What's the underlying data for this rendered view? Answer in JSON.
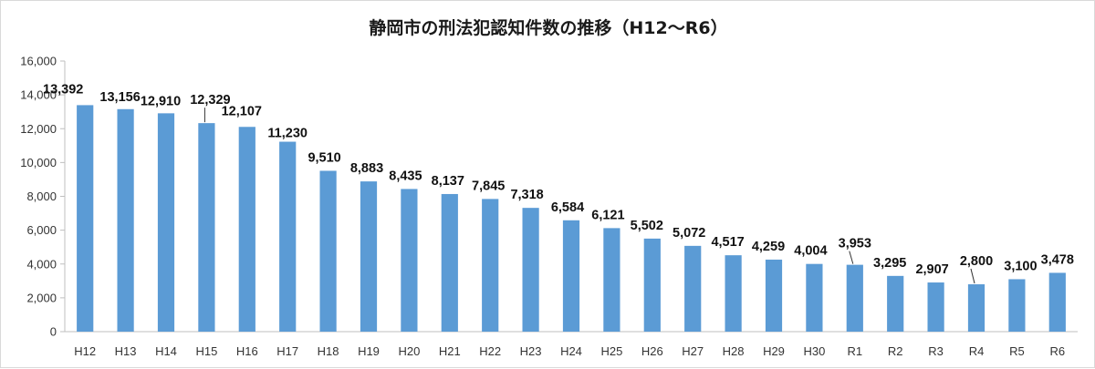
{
  "chart_data": {
    "type": "bar",
    "title": "静岡市の刑法犯認知件数の推移（H12～R6）",
    "xlabel": "",
    "ylabel": "",
    "ylim": [
      0,
      16000
    ],
    "yticks": [
      0,
      2000,
      4000,
      6000,
      8000,
      10000,
      12000,
      14000,
      16000
    ],
    "ytick_labels": [
      "0",
      "2,000",
      "4,000",
      "6,000",
      "8,000",
      "10,000",
      "12,000",
      "14,000",
      "16,000"
    ],
    "grid": false,
    "legend": "none",
    "bar_color": "#5b9bd5",
    "categories": [
      "H12",
      "H13",
      "H14",
      "H15",
      "H16",
      "H17",
      "H18",
      "H19",
      "H20",
      "H21",
      "H22",
      "H23",
      "H24",
      "H25",
      "H26",
      "H27",
      "H28",
      "H29",
      "H30",
      "R1",
      "R2",
      "R3",
      "R4",
      "R5",
      "R6"
    ],
    "values": [
      13392,
      13156,
      12910,
      12329,
      12107,
      11230,
      9510,
      8883,
      8435,
      8137,
      7845,
      7318,
      6584,
      6121,
      5502,
      5072,
      4517,
      4259,
      4004,
      3953,
      3295,
      2907,
      2800,
      3100,
      3478
    ],
    "value_labels": [
      "13,392",
      "13,156",
      "12,910",
      "12,329",
      "12,107",
      "11,230",
      "9,510",
      "8,883",
      "8,435",
      "8,137",
      "7,845",
      "7,318",
      "6,584",
      "6,121",
      "5,502",
      "5,072",
      "4,517",
      "4,259",
      "4,004",
      "3,953",
      "3,295",
      "2,907",
      "2,800",
      "3,100",
      "3,478"
    ]
  }
}
